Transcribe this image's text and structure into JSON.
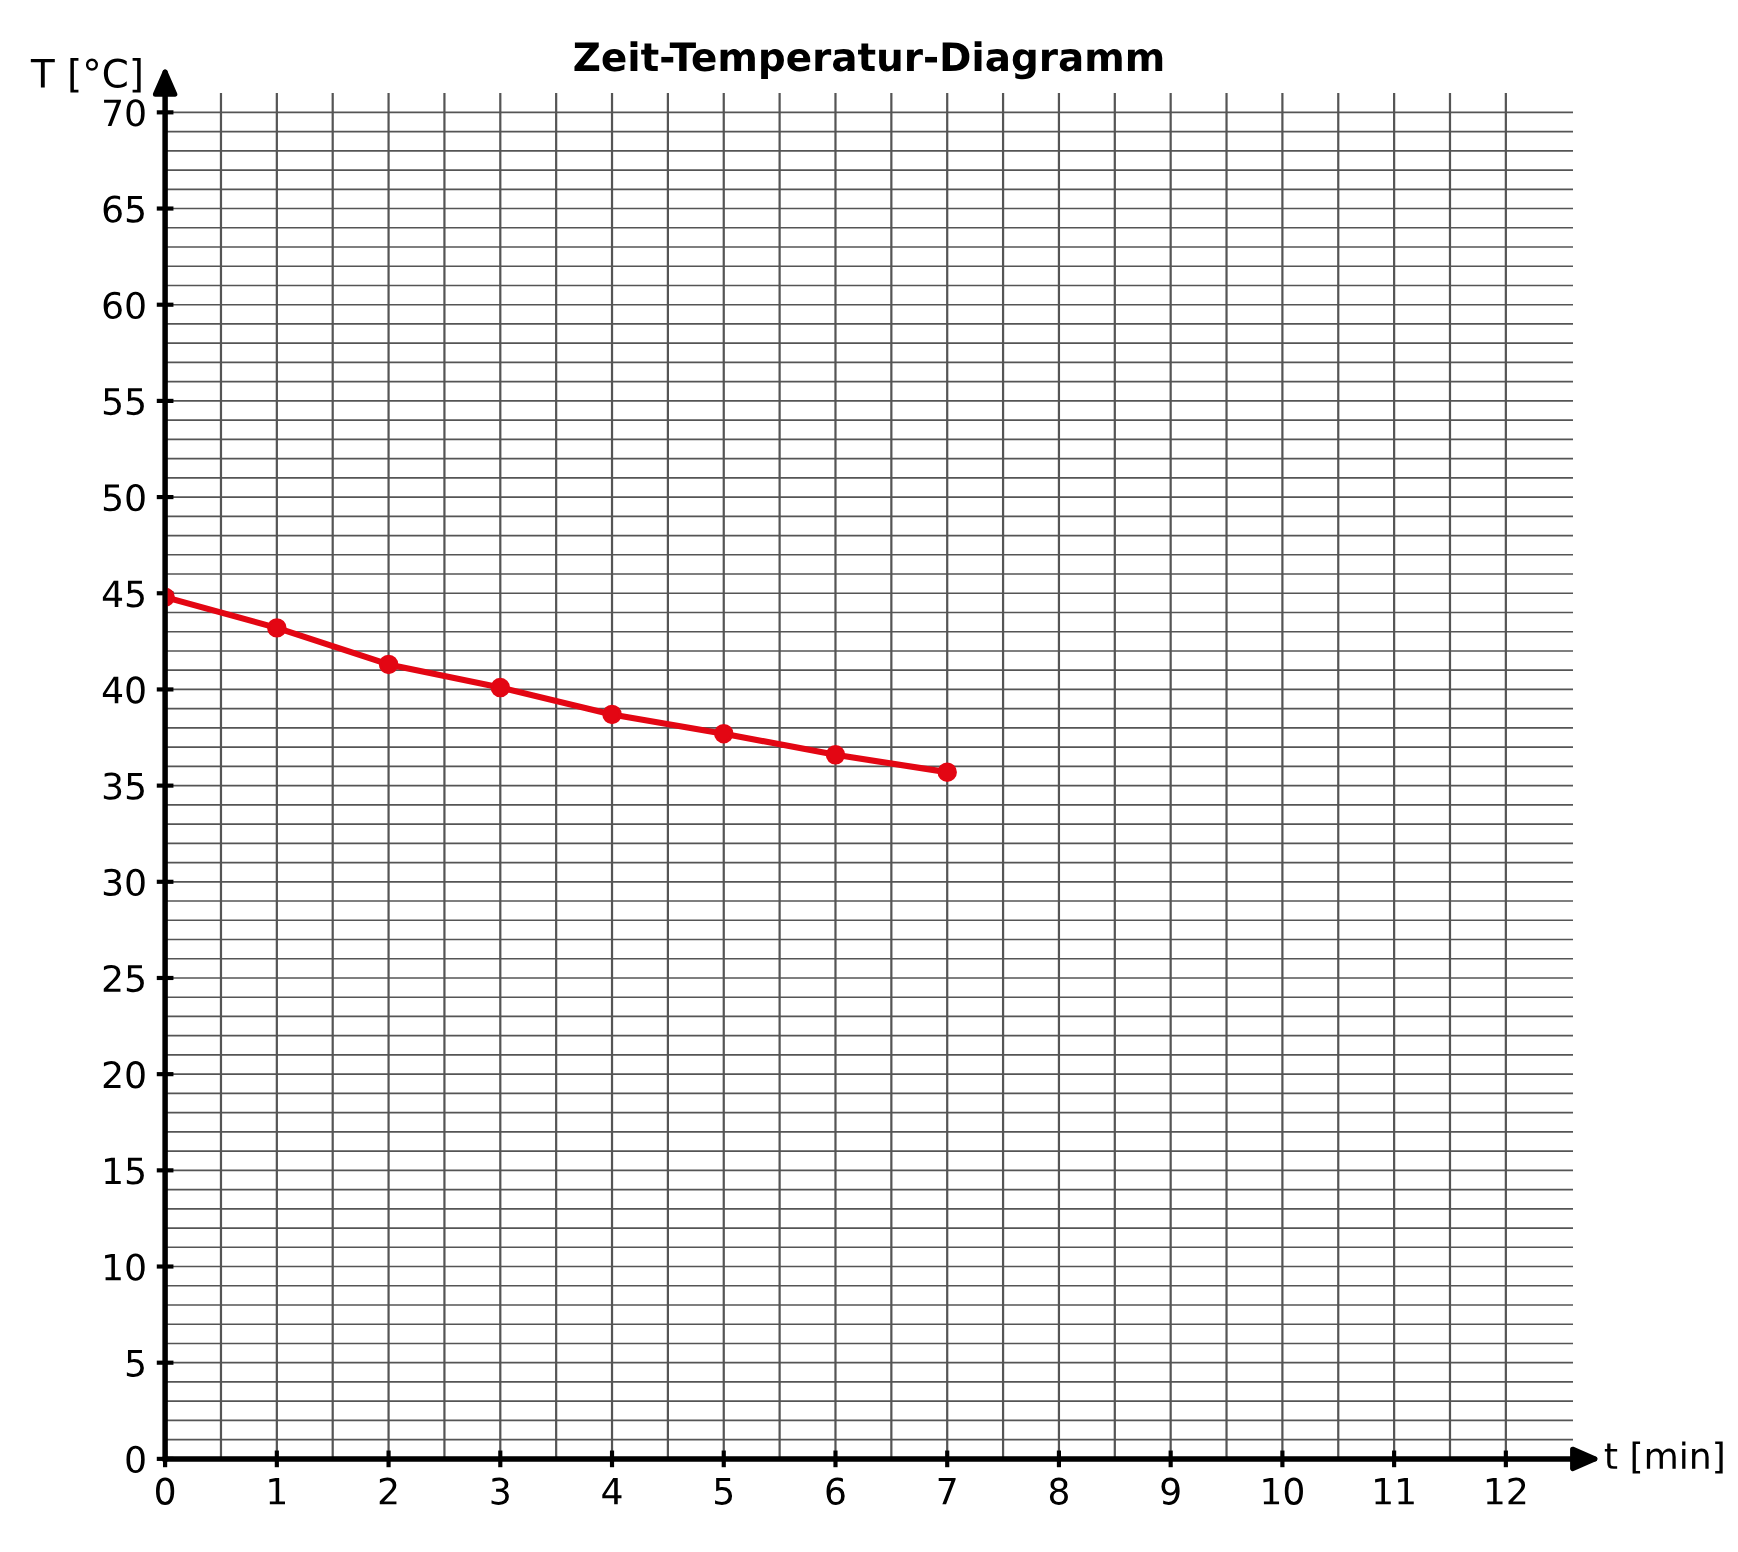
{
  "chart_data": {
    "type": "line",
    "title": "Zeit-Temperatur-Diagramm",
    "xlabel": "t [min]",
    "ylabel": "T [°C]",
    "x": [
      0,
      1,
      2,
      3,
      4,
      5,
      6,
      7
    ],
    "series": [
      {
        "color": "#e30613",
        "values": [
          44.8,
          43.2,
          41.3,
          40.1,
          38.7,
          37.7,
          36.6,
          35.7
        ]
      }
    ],
    "xlim": [
      0,
      12.6
    ],
    "ylim": [
      0,
      71
    ],
    "xticks": [
      0,
      1,
      2,
      3,
      4,
      5,
      6,
      7,
      8,
      9,
      10,
      11,
      12
    ],
    "yticks": [
      0,
      5,
      10,
      15,
      20,
      25,
      30,
      35,
      40,
      45,
      50,
      55,
      60,
      65,
      70
    ],
    "grid": true,
    "marker": "circle",
    "line_style": "solid"
  }
}
